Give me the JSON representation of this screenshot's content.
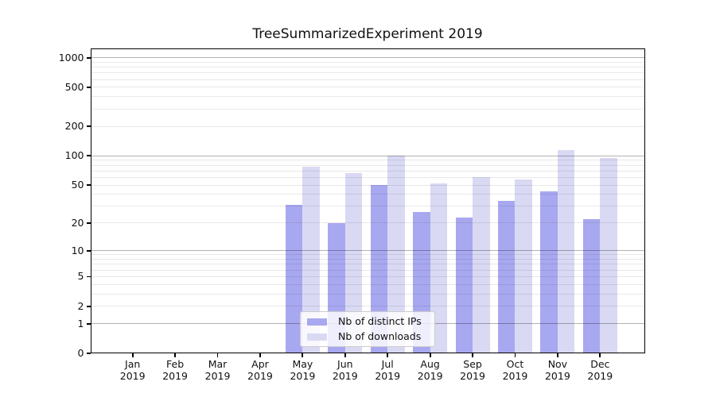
{
  "chart_data": {
    "type": "bar",
    "title": "TreeSummarizedExperiment 2019",
    "categories": [
      "Jan",
      "Feb",
      "Mar",
      "Apr",
      "May",
      "Jun",
      "Jul",
      "Aug",
      "Sep",
      "Oct",
      "Nov",
      "Dec"
    ],
    "category_year": "2019",
    "series": [
      {
        "name": "Nb of distinct IPs",
        "color": "#a8a8f0",
        "values": [
          0,
          0,
          0,
          0,
          31,
          20,
          50,
          26,
          23,
          34,
          43,
          22
        ]
      },
      {
        "name": "Nb of downloads",
        "color": "#d9d9f4",
        "values": [
          0,
          0,
          0,
          0,
          77,
          66,
          100,
          52,
          60,
          57,
          115,
          95
        ]
      }
    ],
    "xlabel": "",
    "ylabel": "",
    "yscale": "log10(value+1)",
    "ylim": [
      0,
      1250
    ],
    "ytick_labels": [
      0,
      1,
      2,
      5,
      10,
      20,
      50,
      100,
      200,
      500,
      1000
    ],
    "major_gridlines": [
      1,
      10,
      100,
      1000
    ],
    "minor_gridline_decades": [
      1,
      10,
      100
    ],
    "grid": true,
    "legend_position": "inside-lower-center"
  },
  "colors": {
    "background": "#ffffff",
    "bar_distinct_ips": "#a8a8f0",
    "bar_downloads": "#d9d9f4",
    "major_grid": "rgba(0,0,0,0.30)",
    "minor_grid": "rgba(0,0,0,0.09)",
    "axis_spine": "#000000",
    "text": "#111111",
    "legend_background": "rgba(255,255,255,0.8)",
    "legend_border": "#cccccc"
  }
}
